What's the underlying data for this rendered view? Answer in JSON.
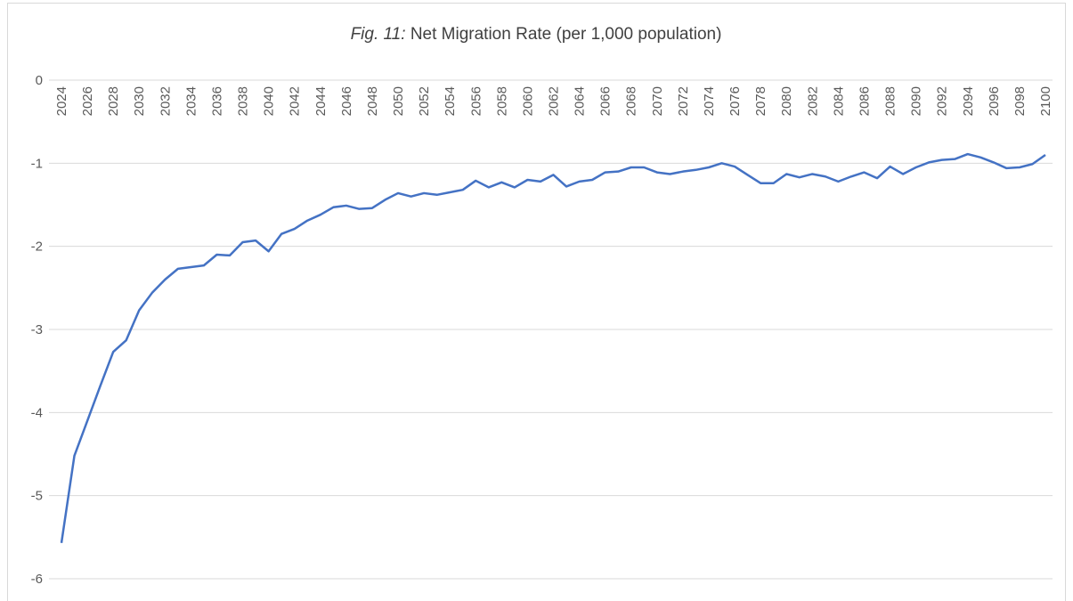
{
  "chart_data": {
    "type": "line",
    "title_label": "Fig. 11:",
    "title": "Net Migration Rate (per 1,000 population)",
    "x": [
      2024,
      2025,
      2026,
      2027,
      2028,
      2029,
      2030,
      2031,
      2032,
      2033,
      2034,
      2035,
      2036,
      2037,
      2038,
      2039,
      2040,
      2041,
      2042,
      2043,
      2044,
      2045,
      2046,
      2047,
      2048,
      2049,
      2050,
      2051,
      2052,
      2053,
      2054,
      2055,
      2056,
      2057,
      2058,
      2059,
      2060,
      2061,
      2062,
      2063,
      2064,
      2065,
      2066,
      2067,
      2068,
      2069,
      2070,
      2071,
      2072,
      2073,
      2074,
      2075,
      2076,
      2077,
      2078,
      2079,
      2080,
      2081,
      2082,
      2083,
      2084,
      2085,
      2086,
      2087,
      2088,
      2089,
      2090,
      2091,
      2092,
      2093,
      2094,
      2095,
      2096,
      2097,
      2098,
      2099,
      2100
    ],
    "series": [
      {
        "name": "Net Migration Rate",
        "color": "#4472c4",
        "values": [
          -5.57,
          -4.52,
          -4.1,
          -3.68,
          -3.27,
          -3.13,
          -2.77,
          -2.56,
          -2.4,
          -2.27,
          -2.25,
          -2.23,
          -2.1,
          -2.11,
          -1.95,
          -1.93,
          -2.06,
          -1.85,
          -1.79,
          -1.69,
          -1.62,
          -1.53,
          -1.51,
          -1.55,
          -1.54,
          -1.44,
          -1.36,
          -1.4,
          -1.36,
          -1.38,
          -1.35,
          -1.32,
          -1.21,
          -1.29,
          -1.23,
          -1.29,
          -1.2,
          -1.22,
          -1.14,
          -1.28,
          -1.22,
          -1.2,
          -1.11,
          -1.1,
          -1.05,
          -1.05,
          -1.11,
          -1.13,
          -1.1,
          -1.08,
          -1.05,
          -1.0,
          -1.04,
          -1.14,
          -1.24,
          -1.24,
          -1.13,
          -1.17,
          -1.13,
          -1.16,
          -1.22,
          -1.16,
          -1.11,
          -1.18,
          -1.04,
          -1.13,
          -1.05,
          -0.99,
          -0.96,
          -0.95,
          -0.89,
          -0.93,
          -0.99,
          -1.06,
          -1.05,
          -1.01,
          -0.9
        ]
      }
    ],
    "xlim": [
      2024,
      2100
    ],
    "xticks": [
      2024,
      2026,
      2028,
      2030,
      2032,
      2034,
      2036,
      2038,
      2040,
      2042,
      2044,
      2046,
      2048,
      2050,
      2052,
      2054,
      2056,
      2058,
      2060,
      2062,
      2064,
      2066,
      2068,
      2070,
      2072,
      2074,
      2076,
      2078,
      2080,
      2082,
      2084,
      2086,
      2088,
      2090,
      2092,
      2094,
      2096,
      2098,
      2100
    ],
    "ylim": [
      -6,
      0
    ],
    "yticks": [
      0,
      -1,
      -2,
      -3,
      -4,
      -5,
      -6
    ],
    "grid": true
  }
}
